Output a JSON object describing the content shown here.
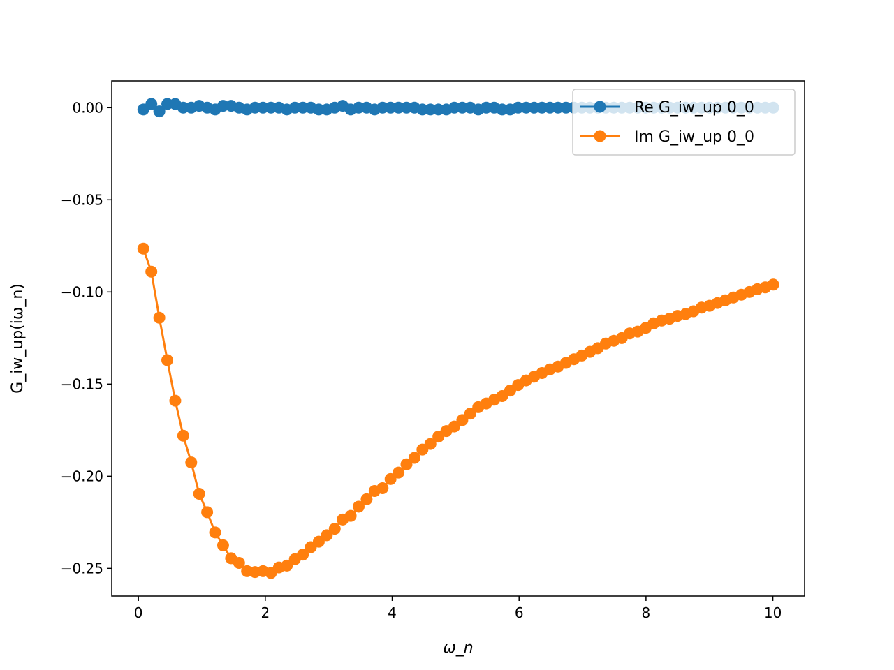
{
  "chart_data": {
    "type": "line",
    "title": "",
    "xlabel": "ω_n",
    "ylabel": "G_iw_up(iω_n)",
    "xlim": [
      -0.42,
      10.5
    ],
    "ylim": [
      -0.265,
      0.0145
    ],
    "xticks": [
      0,
      2,
      4,
      6,
      8,
      10
    ],
    "xtick_labels": [
      "0",
      "2",
      "4",
      "6",
      "8",
      "10"
    ],
    "yticks": [
      0.0,
      -0.05,
      -0.1,
      -0.15,
      -0.2,
      -0.25
    ],
    "ytick_labels": [
      "0.00",
      "−0.05",
      "−0.10",
      "−0.15",
      "−0.20",
      "−0.25"
    ],
    "grid": false,
    "legend_position": "top-right",
    "marker": "circle",
    "x": [
      0.0785,
      0.2042,
      0.3299,
      0.4555,
      0.5812,
      0.7069,
      0.8325,
      0.9582,
      1.0838,
      1.2095,
      1.3352,
      1.4608,
      1.5865,
      1.7122,
      1.8378,
      1.9635,
      2.0892,
      2.2148,
      2.3405,
      2.4662,
      2.5918,
      2.7175,
      2.8431,
      2.9688,
      3.0945,
      3.2201,
      3.3458,
      3.4715,
      3.5971,
      3.7228,
      3.8485,
      3.9741,
      4.0998,
      4.2254,
      4.3511,
      4.4768,
      4.6024,
      4.7281,
      4.8538,
      4.9794,
      5.1051,
      5.2308,
      5.3564,
      5.4821,
      5.6077,
      5.7334,
      5.8591,
      5.9847,
      6.1104,
      6.2361,
      6.3617,
      6.4874,
      6.6131,
      6.7387,
      6.8644,
      6.99,
      7.1157,
      7.2414,
      7.367,
      7.4927,
      7.6184,
      7.744,
      7.8697,
      7.9954,
      8.121,
      8.2467,
      8.3723,
      8.498,
      8.6237,
      8.7493,
      8.875,
      9.0007,
      9.1263,
      9.252,
      9.3777,
      9.5033,
      9.629,
      9.7546,
      9.8803,
      10.006
    ],
    "series": [
      {
        "name": "Re G_iw_up 0_0",
        "color": "#1f77b4",
        "values": [
          -0.001,
          0.002,
          -0.002,
          0.002,
          0.002,
          0.0,
          0.0,
          0.001,
          0.0,
          -0.001,
          0.001,
          0.001,
          0.0,
          -0.001,
          0.0,
          0.0,
          0.0,
          0.0,
          -0.001,
          0.0,
          0.0,
          0.0,
          -0.001,
          -0.001,
          0.0,
          0.001,
          -0.001,
          0.0,
          0.0,
          -0.001,
          0.0,
          0.0,
          0.0,
          0.0,
          0.0,
          -0.001,
          -0.001,
          -0.001,
          -0.001,
          0.0,
          0.0,
          0.0,
          -0.001,
          0.0,
          0.0,
          -0.001,
          -0.001,
          0.0,
          0.0,
          0.0,
          0.0,
          0.0,
          0.0,
          0.0,
          0.0,
          0.0,
          0.0,
          0.0,
          0.0,
          0.0,
          0.0,
          0.0,
          0.0,
          0.0,
          0.0,
          0.0,
          0.0,
          0.0,
          0.0,
          0.0,
          0.0,
          0.0,
          0.0,
          0.0,
          0.0,
          0.0,
          0.0,
          0.0,
          0.0,
          0.0
        ]
      },
      {
        "name": "Im G_iw_up 0_0",
        "color": "#ff7f0e",
        "values": [
          -0.0765,
          -0.089,
          -0.114,
          -0.137,
          -0.159,
          -0.178,
          -0.1925,
          -0.2095,
          -0.2195,
          -0.2305,
          -0.2375,
          -0.2445,
          -0.247,
          -0.2515,
          -0.252,
          -0.2515,
          -0.2525,
          -0.2495,
          -0.2485,
          -0.245,
          -0.2425,
          -0.2385,
          -0.2355,
          -0.232,
          -0.2285,
          -0.2235,
          -0.2215,
          -0.2165,
          -0.2125,
          -0.208,
          -0.2065,
          -0.2015,
          -0.198,
          -0.1935,
          -0.19,
          -0.1855,
          -0.1825,
          -0.1785,
          -0.1755,
          -0.173,
          -0.1695,
          -0.166,
          -0.1625,
          -0.1605,
          -0.1585,
          -0.1565,
          -0.1535,
          -0.1505,
          -0.148,
          -0.146,
          -0.144,
          -0.142,
          -0.1405,
          -0.1385,
          -0.1365,
          -0.1345,
          -0.1325,
          -0.1305,
          -0.128,
          -0.1265,
          -0.125,
          -0.1225,
          -0.1215,
          -0.1195,
          -0.117,
          -0.1155,
          -0.1145,
          -0.113,
          -0.112,
          -0.1105,
          -0.1085,
          -0.1075,
          -0.106,
          -0.1045,
          -0.103,
          -0.1015,
          -0.1,
          -0.0985,
          -0.0975,
          -0.096
        ]
      }
    ]
  }
}
